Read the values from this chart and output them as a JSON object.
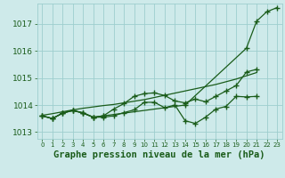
{
  "title": "Graphe pression niveau de la mer (hPa)",
  "ylim": [
    1012.75,
    1017.75
  ],
  "yticks": [
    1013,
    1014,
    1015,
    1016,
    1017
  ],
  "xticks": [
    0,
    1,
    2,
    3,
    4,
    5,
    6,
    7,
    8,
    9,
    10,
    11,
    12,
    13,
    14,
    15,
    16,
    17,
    18,
    19,
    20,
    21,
    22,
    23
  ],
  "background_color": "#ceeaea",
  "grid_color": "#9ecece",
  "line_color": "#1a5c1a",
  "s1_x": [
    0,
    1,
    2,
    3,
    4,
    5,
    6,
    14,
    20,
    21,
    22,
    23
  ],
  "s1_y": [
    1013.6,
    1013.5,
    1013.7,
    1013.8,
    1013.7,
    1013.55,
    1013.6,
    1014.0,
    1016.1,
    1017.1,
    1017.45,
    1017.6
  ],
  "s2_x": [
    0,
    1,
    2,
    3,
    4,
    5,
    6,
    7,
    8,
    9,
    10,
    11,
    12,
    13,
    14,
    15,
    16,
    17,
    18,
    19,
    20,
    21
  ],
  "s2_y": [
    1013.6,
    1013.5,
    1013.7,
    1013.8,
    1013.72,
    1013.55,
    1013.6,
    1013.85,
    1014.05,
    1014.32,
    1014.42,
    1014.45,
    1014.35,
    1014.15,
    1014.08,
    1014.22,
    1014.12,
    1014.32,
    1014.52,
    1014.72,
    1015.22,
    1015.32
  ],
  "s3_x": [
    0,
    1,
    2,
    3,
    4,
    5,
    6,
    7,
    8,
    9,
    10,
    11,
    12,
    13,
    14,
    15,
    16,
    17,
    18,
    19,
    20,
    21
  ],
  "s3_y": [
    1013.6,
    1013.5,
    1013.7,
    1013.8,
    1013.7,
    1013.55,
    1013.55,
    1013.6,
    1013.72,
    1013.82,
    1014.1,
    1014.1,
    1013.9,
    1014.0,
    1013.42,
    1013.32,
    1013.55,
    1013.85,
    1013.95,
    1014.32,
    1014.3,
    1014.32
  ],
  "s4_x": [
    0,
    1,
    2,
    3,
    4,
    5,
    6,
    7,
    8,
    9,
    10,
    11,
    12,
    13,
    14,
    15,
    16,
    17,
    18,
    19,
    20,
    21
  ],
  "s4_y": [
    1013.62,
    1013.68,
    1013.75,
    1013.82,
    1013.88,
    1013.93,
    1013.98,
    1014.02,
    1014.08,
    1014.14,
    1014.2,
    1014.28,
    1014.36,
    1014.44,
    1014.52,
    1014.6,
    1014.68,
    1014.76,
    1014.86,
    1014.96,
    1015.08,
    1015.2
  ],
  "line_color_dark": "#1a5c1a",
  "font_color": "#1a5c1a",
  "font_size_label": 7.5,
  "font_size_tick": 6.5
}
